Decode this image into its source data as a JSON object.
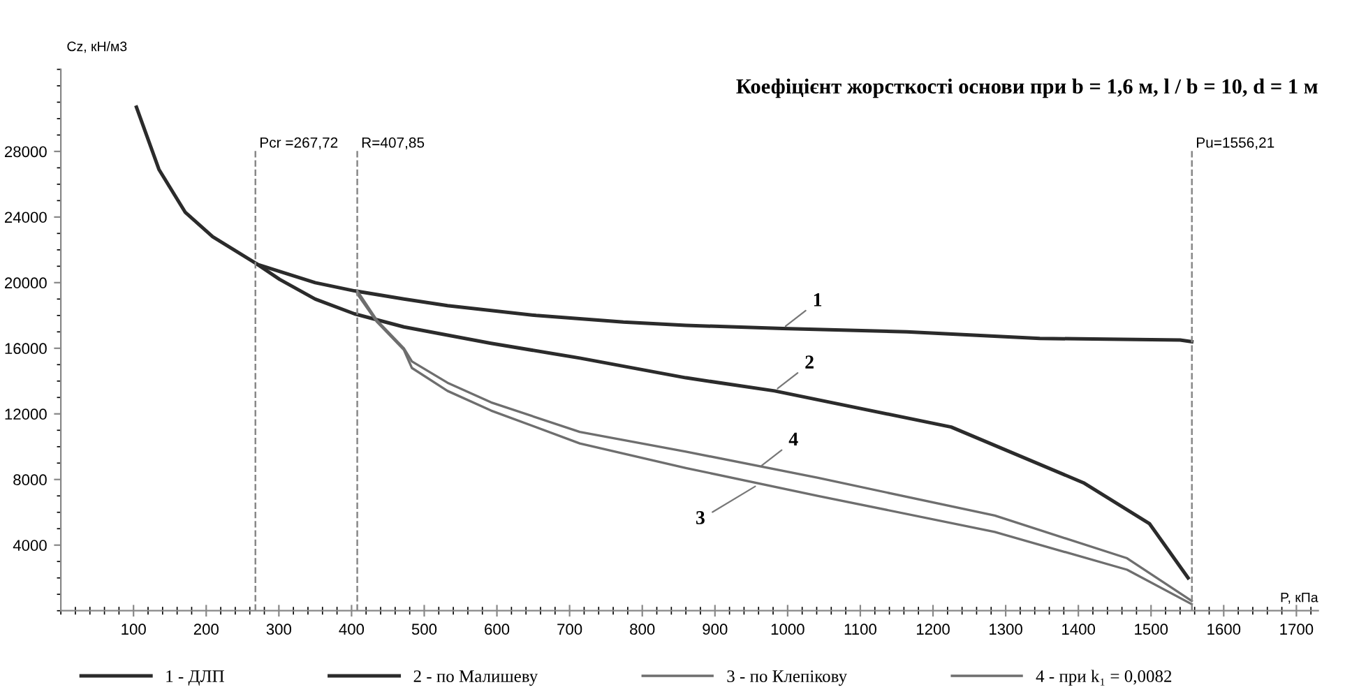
{
  "chart_data": {
    "type": "line",
    "title": "Коефіцієнт жорсткості основи при b = 1,6 м, l / b = 10, d = 1 м",
    "xlabel": "P, кПа",
    "ylabel": "Cz, кН/м3",
    "xlim": [
      0,
      1730
    ],
    "ylim": [
      0,
      33000
    ],
    "xticks": [
      100,
      200,
      300,
      400,
      500,
      600,
      700,
      800,
      900,
      1000,
      1100,
      1200,
      1300,
      1400,
      1500,
      1600,
      1700
    ],
    "yticks": [
      4000,
      8000,
      12000,
      16000,
      20000,
      24000,
      28000
    ],
    "grid": false,
    "legend": "bottom",
    "marker": "none",
    "line_style": "solid",
    "series": [
      {
        "name": "1 - ДЛП",
        "color": "#2b2b2b",
        "x": [
          104,
          135,
          171,
          209,
          271,
          350,
          404,
          472,
          532,
          654,
          774,
          860,
          993,
          1164,
          1347,
          1540,
          1556
        ],
        "values": [
          30700,
          26900,
          24300,
          22800,
          21100,
          20000,
          19500,
          19000,
          18600,
          18000,
          17600,
          17400,
          17200,
          17000,
          16600,
          16500,
          16400
        ]
      },
      {
        "name": "2 - по Малишеву",
        "color": "#2b2b2b",
        "x": [
          271,
          301,
          350,
          404,
          472,
          592,
          714,
          860,
          982,
          1225,
          1407,
          1498,
          1551
        ],
        "values": [
          21100,
          20200,
          19000,
          18100,
          17300,
          16300,
          15400,
          14200,
          13400,
          11200,
          7800,
          5300,
          2000
        ]
      },
      {
        "name": "3 - по Клепікову",
        "color": "#6e6e6e",
        "x": [
          408,
          435,
          472,
          483,
          532,
          592,
          714,
          860,
          1042,
          1285,
          1467,
          1556
        ],
        "values": [
          19300,
          17600,
          15900,
          14800,
          13400,
          12200,
          10200,
          8700,
          7000,
          4800,
          2500,
          400
        ]
      },
      {
        "name": "4 - при k₁ = 0,0082",
        "color": "#6e6e6e",
        "x": [
          408,
          435,
          472,
          483,
          532,
          592,
          714,
          860,
          1042,
          1285,
          1467,
          1556
        ],
        "values": [
          19500,
          17700,
          16000,
          15200,
          13900,
          12700,
          10900,
          9700,
          8100,
          5800,
          3200,
          600
        ]
      }
    ],
    "ref_lines": [
      {
        "axis": "x",
        "value": 267.72,
        "label": "Pcr =267,72",
        "color": "#888888",
        "line_style": "dashed"
      },
      {
        "axis": "x",
        "value": 407.85,
        "label": "R=407,85",
        "color": "#888888",
        "line_style": "dashed"
      },
      {
        "axis": "x",
        "value": 1556.21,
        "label": "Pu=1556,21",
        "color": "#888888",
        "line_style": "dashed"
      }
    ],
    "annotations": [
      {
        "text": "1",
        "x": 993,
        "y": 17200
      },
      {
        "text": "2",
        "x": 982,
        "y": 13400
      },
      {
        "text": "3",
        "x": 960,
        "y": 7700
      },
      {
        "text": "4",
        "x": 960,
        "y": 8700
      }
    ]
  }
}
